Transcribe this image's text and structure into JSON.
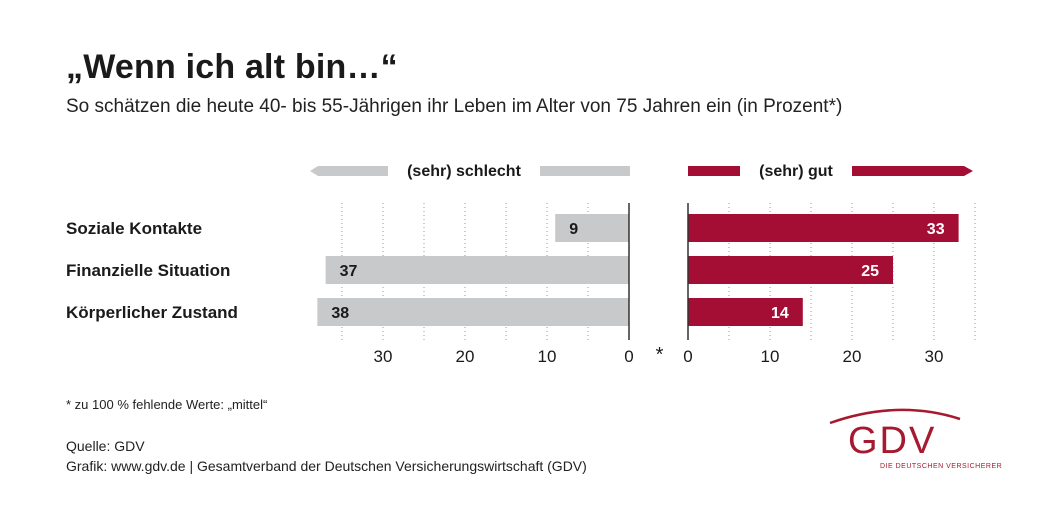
{
  "title": "„Wenn ich alt bin…“",
  "subtitle": "So schätzen die heute 40- bis 55-Jährigen ihr Leben im Alter von 75 Jahren ein (in Prozent*)",
  "chart_data": {
    "type": "bar",
    "categories": [
      "Soziale Kontakte",
      "Finanzielle Situation",
      "Körperlicher Zustand"
    ],
    "series": [
      {
        "name": "(sehr) schlecht",
        "values": [
          9,
          37,
          38
        ],
        "color": "#c8c9cb"
      },
      {
        "name": "(sehr) gut",
        "values": [
          33,
          25,
          14
        ],
        "color": "#a50e34"
      }
    ],
    "xlim": [
      0,
      35
    ],
    "xticks": [
      0,
      10,
      20,
      30
    ],
    "grid": true,
    "center_label": "*"
  },
  "footnote": "* zu 100 % fehlende Werte: „mittel“",
  "source": "Quelle: GDV",
  "credit": "Grafik: www.gdv.de | Gesamtverband der Deutschen Versicherungswirtschaft (GDV)",
  "logo": {
    "text": "GDV",
    "subtext": "DIE DEUTSCHEN VERSICHERER",
    "color": "#a6192e"
  }
}
